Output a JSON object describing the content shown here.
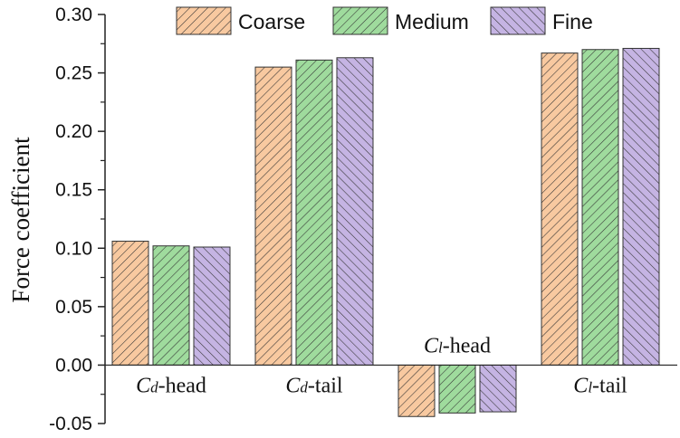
{
  "chart_data": {
    "type": "bar",
    "categories": [
      {
        "main": "C",
        "sub": "d",
        "suffix": "-head"
      },
      {
        "main": "C",
        "sub": "d",
        "suffix": "-tail"
      },
      {
        "main": "C",
        "sub": "l",
        "suffix": "-head"
      },
      {
        "main": "C",
        "sub": "l",
        "suffix": "-tail"
      }
    ],
    "series": [
      {
        "name": "Coarse",
        "values": [
          0.106,
          0.255,
          -0.044,
          0.267
        ]
      },
      {
        "name": "Medium",
        "values": [
          0.102,
          0.261,
          -0.041,
          0.27
        ]
      },
      {
        "name": "Fine",
        "values": [
          0.101,
          0.263,
          -0.04,
          0.271
        ]
      }
    ],
    "colors": {
      "Coarse": "#f8c9a0",
      "Medium": "#9fdb9d",
      "Fine": "#c5b4e3"
    },
    "hatch": {
      "Coarse": "forward-diagonal",
      "Medium": "forward-diagonal",
      "Fine": "backward-diagonal"
    },
    "ylabel": "Force coefficient",
    "xlabel": "",
    "ylim": [
      -0.05,
      0.3
    ],
    "yticks": [
      "0.30",
      "0.25",
      "0.20",
      "0.15",
      "0.10",
      "0.05",
      "0.00",
      "-0.05"
    ],
    "legend_position": "top",
    "grid": false
  }
}
